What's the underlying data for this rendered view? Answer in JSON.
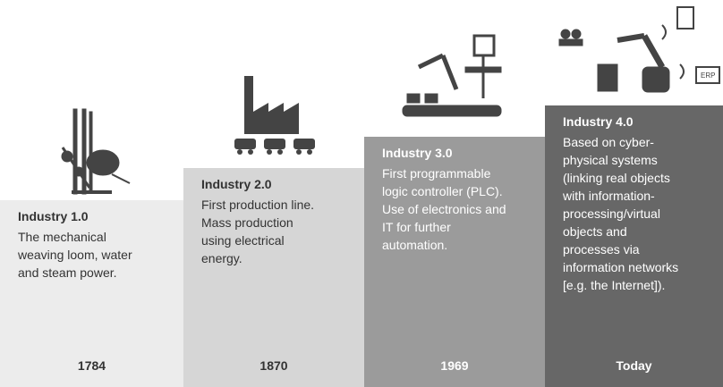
{
  "stages": [
    {
      "title": "Industry 1.0",
      "lines": [
        "The mechanical",
        "weaving loom, water",
        "and steam power."
      ],
      "year": "1784"
    },
    {
      "title": "Industry 2.0",
      "lines": [
        "First production line.",
        "Mass production",
        "using electrical",
        "energy."
      ],
      "year": "1870"
    },
    {
      "title": "Industry 3.0",
      "lines": [
        "First programmable",
        "logic controller (PLC).",
        "Use of electronics and",
        "IT for further",
        "automation."
      ],
      "year": "1969"
    },
    {
      "title": "Industry 4.0",
      "lines": [
        "Based on cyber-",
        "physical systems",
        "(linking real objects",
        "with information-",
        "processing/virtual",
        "objects and",
        "processes via",
        "information networks",
        "[e.g. the Internet])."
      ],
      "year": "Today"
    }
  ],
  "icon_labels": [
    "ERP"
  ]
}
